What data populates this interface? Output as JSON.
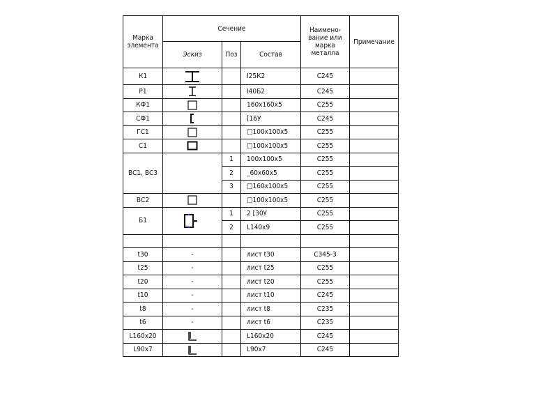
{
  "header": {
    "mark": "Марка элемента",
    "section": "Сечение",
    "sketch": "Эскиз",
    "pos": "Поз",
    "composition": "Состав",
    "metal": "Наимено-вание или марка металла",
    "note": "Примечание"
  },
  "rows": [
    {
      "mark": "К1",
      "icon": "i-beam-wide-icon",
      "pos": "",
      "comp": "I25К2",
      "metal": "С245"
    },
    {
      "mark": "Р1",
      "icon": "i-beam-icon",
      "pos": "",
      "comp": "I40Б2",
      "metal": "С245"
    },
    {
      "mark": "КФ1",
      "icon": "square-tube-icon",
      "pos": "",
      "comp": "160x160x5",
      "metal": "С255"
    },
    {
      "mark": "СФ1",
      "icon": "channel-icon",
      "pos": "",
      "comp": "[16У",
      "metal": "С245"
    },
    {
      "mark": "ГС1",
      "icon": "square-tube-icon",
      "pos": "",
      "comp": "□100x100x5",
      "metal": "С255"
    },
    {
      "mark": "С1",
      "icon": "square-tube-thick-icon",
      "pos": "",
      "comp": "□100x100x5",
      "metal": "С255"
    },
    {
      "mark": "ВС1, ВС3",
      "icon": "",
      "pos": "1",
      "comp": "100x100x5",
      "metal": "С255"
    },
    {
      "pos": "2",
      "comp": "_60x60x5",
      "metal": "С255"
    },
    {
      "pos": "3",
      "comp": "□160x100x5",
      "metal": "С255"
    },
    {
      "mark": "ВС2",
      "icon": "square-tube-icon",
      "pos": "",
      "comp": "□100x100x5",
      "metal": "С255"
    },
    {
      "mark": "Б1",
      "icon": "built-up-channel-icon",
      "pos": "1",
      "comp": "2 [30У",
      "metal": "С255"
    },
    {
      "pos": "2",
      "comp": "L140x9",
      "metal": "С255"
    },
    {
      "mark": "",
      "icon": "",
      "pos": "",
      "comp": "",
      "metal": ""
    },
    {
      "mark": "t30",
      "icon": "-",
      "pos": "",
      "comp": "лист t30",
      "metal": "С345-3"
    },
    {
      "mark": "t25",
      "icon": "-",
      "pos": "",
      "comp": "лист t25",
      "metal": "С255"
    },
    {
      "mark": "t20",
      "icon": "-",
      "pos": "",
      "comp": "лист t20",
      "metal": "С255"
    },
    {
      "mark": "t10",
      "icon": "-",
      "pos": "",
      "comp": "лист t10",
      "metal": "С245"
    },
    {
      "mark": "t8",
      "icon": "-",
      "pos": "",
      "comp": "лист t8",
      "metal": "С235"
    },
    {
      "mark": "t6",
      "icon": "-",
      "pos": "",
      "comp": "лист t6",
      "metal": "С235"
    },
    {
      "mark": "L160x20",
      "icon": "angle-icon",
      "pos": "",
      "comp": "L160x20",
      "metal": "С245"
    },
    {
      "mark": "L90x7",
      "icon": "angle-icon",
      "pos": "",
      "comp": "L90x7",
      "metal": "С245"
    }
  ]
}
